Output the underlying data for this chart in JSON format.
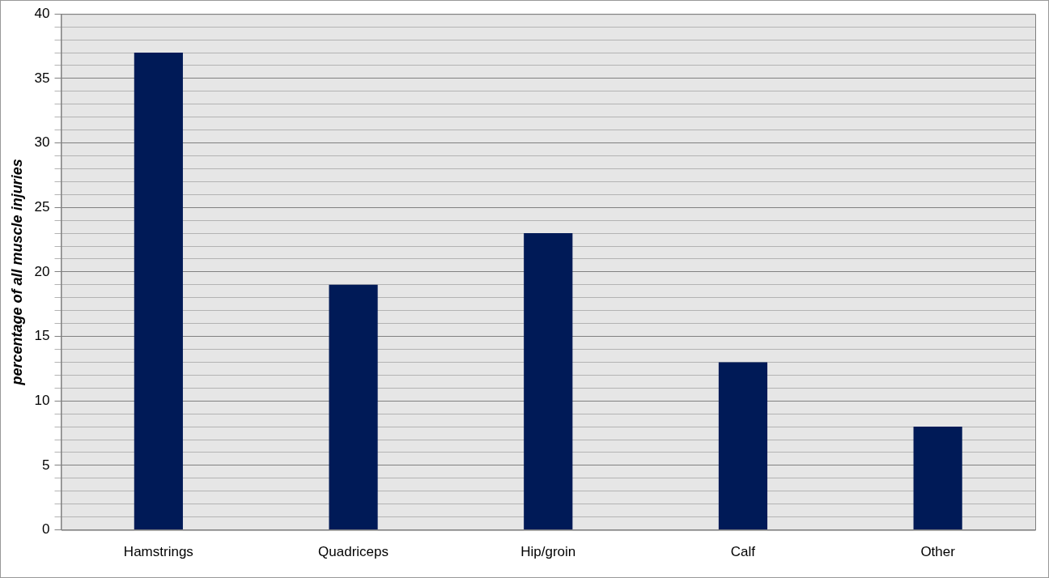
{
  "chart_data": {
    "type": "bar",
    "ylabel": "percentage of all muscle injuries",
    "categories": [
      "Hamstrings",
      "Quadriceps",
      "Hip/groin",
      "Calf",
      "Other"
    ],
    "values": [
      37,
      19,
      23,
      13,
      8
    ],
    "color": "#001a57",
    "ylim": [
      0,
      40
    ],
    "yticks": [
      0,
      {
        "value": 1,
        "label": null
      },
      {
        "value": 2,
        "label": null
      },
      {
        "value": 3,
        "label": null
      },
      {
        "value": 4,
        "label": null
      },
      5,
      {
        "value": 6,
        "label": null
      },
      {
        "value": 7,
        "label": null
      },
      {
        "value": 8,
        "label": null
      },
      {
        "value": 9,
        "label": null
      },
      10,
      {
        "value": 11,
        "label": null
      },
      {
        "value": 12,
        "label": null
      },
      {
        "value": 13,
        "label": null
      },
      {
        "value": 14,
        "label": null
      },
      15,
      {
        "value": 16,
        "label": null
      },
      {
        "value": 17,
        "label": null
      },
      {
        "value": 18,
        "label": null
      },
      {
        "value": 19,
        "label": null
      },
      20,
      {
        "value": 21,
        "label": null
      },
      {
        "value": 22,
        "label": null
      },
      {
        "value": 23,
        "label": null
      },
      {
        "value": 24,
        "label": null
      },
      25,
      {
        "value": 26,
        "label": null
      },
      {
        "value": 27,
        "label": null
      },
      {
        "value": 28,
        "label": null
      },
      {
        "value": 29,
        "label": null
      },
      30,
      {
        "value": 31,
        "label": null
      },
      {
        "value": 32,
        "label": null
      },
      {
        "value": 33,
        "label": null
      },
      {
        "value": 34,
        "label": null
      },
      35,
      {
        "value": 36,
        "label": null
      },
      {
        "value": 37,
        "label": null
      },
      {
        "value": 38,
        "label": null
      },
      {
        "value": 39,
        "label": null
      },
      40
    ],
    "grid": "y"
  }
}
